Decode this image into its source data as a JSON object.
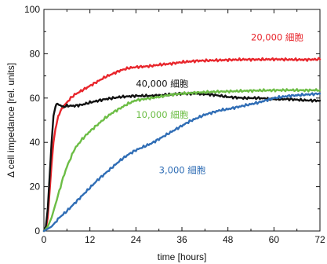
{
  "chart_data": {
    "type": "line",
    "xlabel": "time [hours]",
    "ylabel": "Δ cell impedance [rel. units]",
    "xlim": [
      0,
      72
    ],
    "ylim": [
      0,
      100
    ],
    "x_ticks": [
      0,
      12,
      24,
      36,
      48,
      60,
      72
    ],
    "y_ticks": [
      0,
      20,
      40,
      60,
      80,
      100
    ],
    "grid": false,
    "legend": "inline labels",
    "series": [
      {
        "name": "20,000 細胞",
        "color": "#e8262c",
        "x": [
          0,
          0.5,
          1,
          1.5,
          2,
          2.5,
          3,
          3.5,
          4,
          5,
          6,
          7,
          8,
          10,
          12,
          14,
          16,
          18,
          20,
          22,
          24,
          26,
          28,
          30,
          33,
          36,
          40,
          44,
          48,
          52,
          56,
          60,
          64,
          68,
          72
        ],
        "values": [
          0,
          1,
          6,
          18,
          30,
          40,
          46,
          50,
          53,
          56,
          58,
          60,
          61.5,
          63.5,
          65.5,
          67.5,
          69.5,
          71,
          72.5,
          73.5,
          74,
          74.2,
          74.5,
          75,
          75.5,
          76.2,
          76.8,
          77,
          77.2,
          77.4,
          77.4,
          77.5,
          77.4,
          77.3,
          77.5
        ]
      },
      {
        "name": "40,000 細胞",
        "color": "#111111",
        "x": [
          0,
          0.5,
          1,
          1.5,
          2,
          2.5,
          3,
          3.5,
          4,
          5,
          6,
          8,
          10,
          12,
          16,
          20,
          24,
          28,
          32,
          36,
          40,
          44,
          48,
          52,
          56,
          60,
          64,
          68,
          72
        ],
        "values": [
          0,
          2,
          10,
          25,
          40,
          52,
          56,
          57.5,
          57,
          56,
          56.5,
          56.5,
          57,
          58,
          59.5,
          60.5,
          61,
          61,
          61.5,
          62,
          62,
          61.5,
          60.5,
          60,
          60,
          59.5,
          59.5,
          59,
          58.8
        ]
      },
      {
        "name": "10,000 細胞",
        "color": "#6cbd45",
        "x": [
          0,
          1,
          2,
          3,
          4,
          5,
          6,
          7,
          8,
          10,
          12,
          14,
          16,
          18,
          20,
          22,
          24,
          26,
          28,
          30,
          33,
          36,
          40,
          44,
          48,
          52,
          56,
          60,
          64,
          68,
          72
        ],
        "values": [
          0,
          2,
          6,
          12,
          18,
          24,
          29,
          33,
          37,
          41.5,
          45,
          48,
          51,
          53.5,
          55.5,
          57.5,
          59,
          59.5,
          60,
          60.5,
          61.5,
          62,
          62.5,
          62.8,
          63,
          63.2,
          63.4,
          63.5,
          63.6,
          63.5,
          63.6
        ]
      },
      {
        "name": "3,000 細胞",
        "color": "#2f6db5",
        "x": [
          0,
          1,
          2,
          3,
          4,
          6,
          8,
          10,
          12,
          14,
          16,
          18,
          20,
          22,
          24,
          26,
          28,
          30,
          32,
          34,
          36,
          38,
          40,
          42,
          44,
          46,
          48,
          52,
          56,
          60,
          64,
          68,
          72
        ],
        "values": [
          0,
          1,
          2,
          4,
          6,
          9,
          12.5,
          16,
          19.5,
          23,
          26,
          29,
          32,
          34.5,
          36.5,
          38,
          39.5,
          41.5,
          43.5,
          45.5,
          47.5,
          49.5,
          51,
          52.5,
          53.5,
          54.5,
          55,
          56.5,
          58,
          60,
          61,
          61.5,
          62
        ]
      }
    ],
    "annotations": [
      {
        "series": "20,000 細胞",
        "text": "20,000 細胞",
        "x": 54,
        "y": 86
      },
      {
        "series": "40,000 細胞",
        "text": "40,000 細胞",
        "x": 24,
        "y": 65
      },
      {
        "series": "10,000 細胞",
        "text": "10,000 細胞",
        "x": 24,
        "y": 51
      },
      {
        "series": "3,000 細胞",
        "text": "3,000 細胞",
        "x": 30,
        "y": 26
      }
    ]
  }
}
